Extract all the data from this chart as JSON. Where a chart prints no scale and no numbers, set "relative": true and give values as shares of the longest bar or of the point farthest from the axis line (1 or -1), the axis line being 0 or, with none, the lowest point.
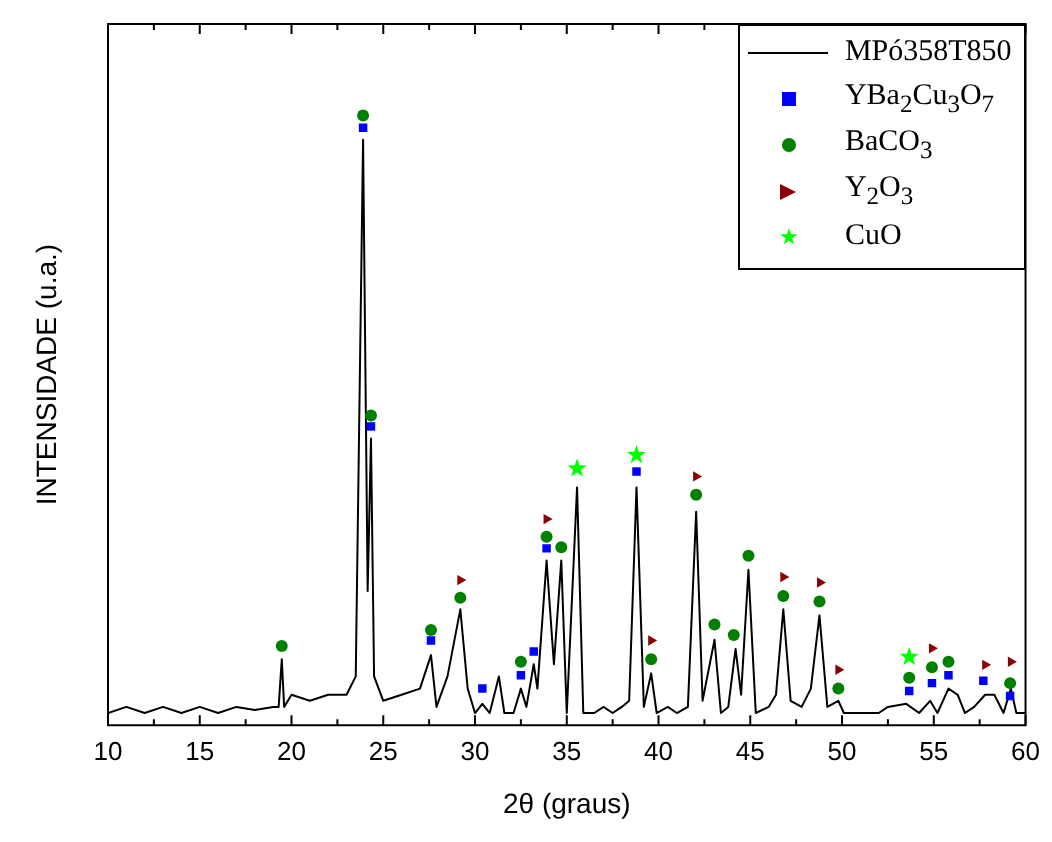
{
  "chart_data": {
    "type": "line",
    "relative": true,
    "xlabel": "2θ (graus)",
    "ylabel": "INTENSIDADE (u.a.)",
    "legend": "top right",
    "grid": false,
    "xlim": [
      10,
      60
    ],
    "xticks": [
      10,
      {
        "value": 12.5,
        "label": null
      },
      15,
      {
        "value": 17.5,
        "label": null
      },
      20,
      {
        "value": 22.5,
        "label": null
      },
      25,
      {
        "value": 27.5,
        "label": null
      },
      30,
      {
        "value": 32.5,
        "label": null
      },
      35,
      {
        "value": 37.5,
        "label": null
      },
      40,
      {
        "value": 42.5,
        "label": null
      },
      45,
      {
        "value": 47.5,
        "label": null
      },
      50,
      {
        "value": 52.5,
        "label": null
      },
      55,
      {
        "value": 57.5,
        "label": null
      },
      60
    ],
    "series": [
      {
        "name": "MPó358T850",
        "color": "#000000",
        "marker": "none",
        "x": [
          10,
          11,
          12,
          13,
          14,
          15,
          16,
          17,
          18,
          19,
          19.3,
          19.47,
          19.6,
          20,
          21,
          22,
          23,
          23.5,
          23.9,
          24.15,
          24.33,
          24.5,
          25,
          26,
          27,
          27.6,
          27.9,
          28.5,
          29.2,
          29.6,
          30,
          30.4,
          30.8,
          31.3,
          31.6,
          32.1,
          32.5,
          32.8,
          33.2,
          33.4,
          33.9,
          34.3,
          34.7,
          35,
          35.56,
          35.9,
          36.5,
          37,
          37.5,
          38,
          38.4,
          38.8,
          39.2,
          39.6,
          39.9,
          40.5,
          41,
          41.6,
          42.05,
          42.4,
          43.05,
          43.4,
          43.8,
          44.2,
          44.5,
          44.9,
          45.3,
          46,
          46.4,
          46.8,
          47.2,
          47.8,
          48.3,
          48.77,
          49.2,
          49.8,
          50.1,
          51,
          52,
          52.5,
          53.5,
          54.2,
          54.8,
          55.2,
          55.8,
          56.3,
          56.7,
          57.2,
          57.8,
          58.3,
          58.8,
          59.2,
          59.5,
          60
        ],
        "values": [
          0.02,
          0.03,
          0.02,
          0.03,
          0.02,
          0.03,
          0.02,
          0.03,
          0.025,
          0.03,
          0.03,
          0.108,
          0.03,
          0.05,
          0.04,
          0.05,
          0.05,
          0.08,
          0.96,
          0.22,
          0.47,
          0.08,
          0.04,
          0.05,
          0.06,
          0.115,
          0.03,
          0.08,
          0.19,
          0.06,
          0.02,
          0.035,
          0.02,
          0.08,
          0.02,
          0.02,
          0.06,
          0.03,
          0.1,
          0.06,
          0.27,
          0.1,
          0.27,
          0.02,
          0.39,
          0.02,
          0.02,
          0.03,
          0.02,
          0.03,
          0.04,
          0.39,
          0.03,
          0.085,
          0.02,
          0.03,
          0.02,
          0.03,
          0.35,
          0.04,
          0.14,
          0.02,
          0.03,
          0.125,
          0.05,
          0.255,
          0.02,
          0.03,
          0.05,
          0.19,
          0.04,
          0.03,
          0.06,
          0.18,
          0.03,
          0.04,
          0.02,
          0.02,
          0.02,
          0.03,
          0.035,
          0.02,
          0.04,
          0.02,
          0.06,
          0.05,
          0.02,
          0.03,
          0.05,
          0.05,
          0.02,
          0.06,
          0.02,
          0.02
        ]
      },
      {
        "name": "YBa$_{2}$Cu$_{3}$O$_{7}$",
        "type": "scatter",
        "color": "#0000ff",
        "marker": "square",
        "x": [
          23.9,
          24.33,
          27.6,
          30.4,
          32.5,
          33.2,
          33.9,
          38.8,
          53.66,
          54.9,
          55.8,
          57.7,
          59.16
        ],
        "values": [
          0.98,
          0.49,
          0.139,
          0.06,
          0.082,
          0.121,
          0.29,
          0.416,
          0.056,
          0.069,
          0.082,
          0.073,
          0.048
        ]
      },
      {
        "name": "BaCO$_{3}$",
        "type": "scatter",
        "color": "#008000",
        "marker": "circle",
        "x": [
          19.47,
          23.9,
          24.33,
          27.6,
          29.2,
          32.5,
          33.9,
          34.7,
          39.6,
          42.05,
          43.05,
          44.1,
          44.9,
          46.8,
          48.77,
          49.8,
          53.66,
          54.9,
          55.8,
          59.16
        ],
        "values": [
          0.13,
          1.0,
          0.508,
          0.156,
          0.209,
          0.104,
          0.309,
          0.292,
          0.108,
          0.378,
          0.165,
          0.148,
          0.278,
          0.212,
          0.203,
          0.06,
          0.078,
          0.095,
          0.104,
          0.069
        ]
      },
      {
        "name": "Y$_{2}$O$_{3}$",
        "type": "scatter",
        "color": "#8b0000",
        "marker": "triangle",
        "x": [
          29.2,
          33.9,
          39.6,
          42.05,
          46.8,
          48.8,
          49.8,
          54.9,
          57.8,
          59.2
        ],
        "values": [
          0.238,
          0.338,
          0.139,
          0.408,
          0.243,
          0.234,
          0.091,
          0.126,
          0.099,
          0.104
        ]
      },
      {
        "name": "CuO",
        "type": "scatter",
        "color": "#00ff00",
        "marker": "star",
        "x": [
          35.56,
          38.8,
          53.66
        ],
        "values": [
          0.421,
          0.443,
          0.112
        ]
      }
    ]
  }
}
